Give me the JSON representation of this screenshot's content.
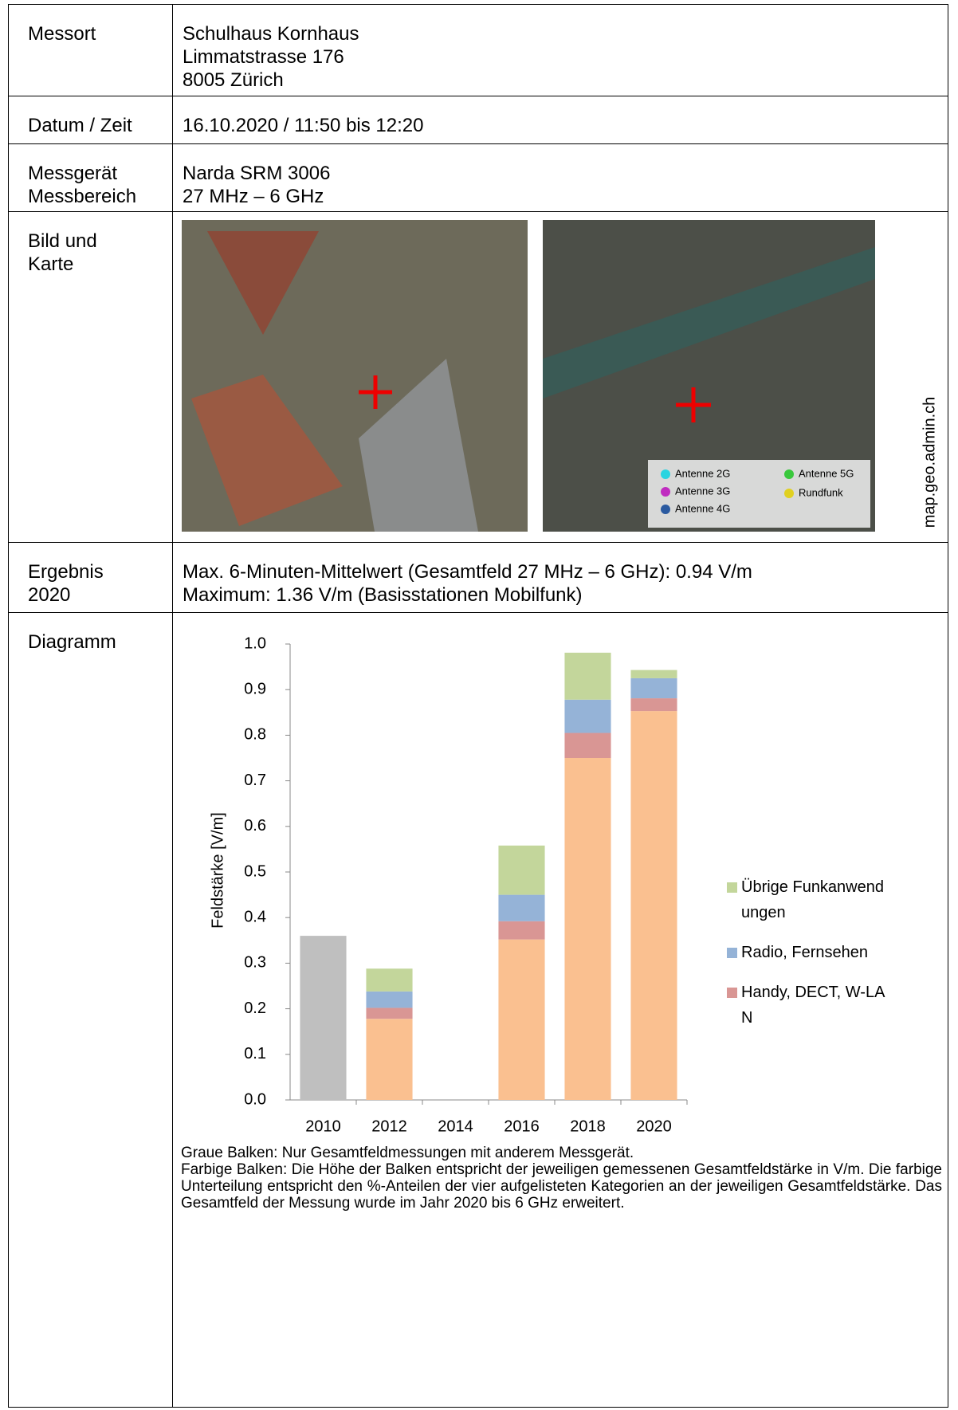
{
  "table": {
    "rows": [
      {
        "label": [
          "Messort"
        ],
        "content": [
          "Schulhaus Kornhaus",
          "Limmatstrasse 176",
          "8005 Zürich"
        ]
      },
      {
        "label": [
          "Datum / Zeit"
        ],
        "content": [
          "16.10.2020 / 11:50 bis 12:20"
        ]
      },
      {
        "label": [
          "Messgerät",
          "Messbereich"
        ],
        "content": [
          "Narda SRM 3006",
          "27 MHz – 6 GHz"
        ]
      },
      {
        "label": [
          "Bild und",
          "Karte"
        ],
        "content": []
      },
      {
        "label": [
          "Ergebnis",
          "2020"
        ],
        "content": [
          "Max. 6-Minuten-Mittelwert (Gesamtfeld 27 MHz – 6 GHz): 0.94 V/m",
          "Maximum: 1.36 V/m (Basisstationen Mobilfunk)"
        ]
      },
      {
        "label": [
          "Diagramm"
        ],
        "content": []
      }
    ]
  },
  "map": {
    "legend": [
      {
        "name": "Antenne 2G",
        "color": "#2ad4e0"
      },
      {
        "name": "Antenne 3G",
        "color": "#c02cc0"
      },
      {
        "name": "Antenne 4G",
        "color": "#2a5aa0"
      },
      {
        "name": "Antenne 5G",
        "color": "#39c83c"
      },
      {
        "name": "Rundfunk",
        "color": "#e0d020"
      }
    ],
    "source": "map.geo.admin.ch"
  },
  "chart_data": {
    "type": "stacked-bar",
    "y_label": "Feldstärke [V/m]",
    "categories": [
      "2010",
      "2012",
      "2014",
      "2016",
      "2018",
      "2020"
    ],
    "series": [
      {
        "color": "#bfbfbf",
        "values": [
          0.36,
          null,
          null,
          null,
          null,
          null
        ]
      },
      {
        "color": "#fac090",
        "values": [
          null,
          0.178,
          null,
          0.352,
          0.75,
          0.853
        ]
      },
      {
        "name": "Handy, DECT, W-LAN",
        "color": "#d99694",
        "values": [
          null,
          0.024,
          null,
          0.04,
          0.055,
          0.028
        ]
      },
      {
        "name": "Radio, Fernsehen",
        "color": "#95b3d7",
        "values": [
          null,
          0.036,
          null,
          0.058,
          0.073,
          0.044
        ]
      },
      {
        "name": "Übrige Funkanwendungen",
        "color": "#c3d69b",
        "values": [
          null,
          0.05,
          null,
          0.108,
          0.103,
          0.018
        ]
      }
    ],
    "ylim": [
      0,
      1
    ],
    "yticks": [
      {
        "value": 0,
        "label": "0.0"
      },
      0.1,
      0.2,
      0.3,
      0.4,
      0.5,
      0.6,
      0.7,
      0.8,
      0.9,
      {
        "value": 1,
        "label": "1.0"
      }
    ],
    "grid": false
  },
  "notes": [
    "Graue Balken: Nur Gesamtfeldmessungen mit anderem Messgerät.",
    "Farbige Balken: Die Höhe der Balken entspricht der jeweiligen gemessenen Gesamtfeldstärke in V/m. Die farbige Unterteilung entspricht den %-Anteilen der vier aufgelisteten Kategorien an der jeweiligen Gesamtfeldstärke. Das Gesamtfeld der Messung wurde im Jahr 2020 bis 6 GHz erweitert."
  ]
}
